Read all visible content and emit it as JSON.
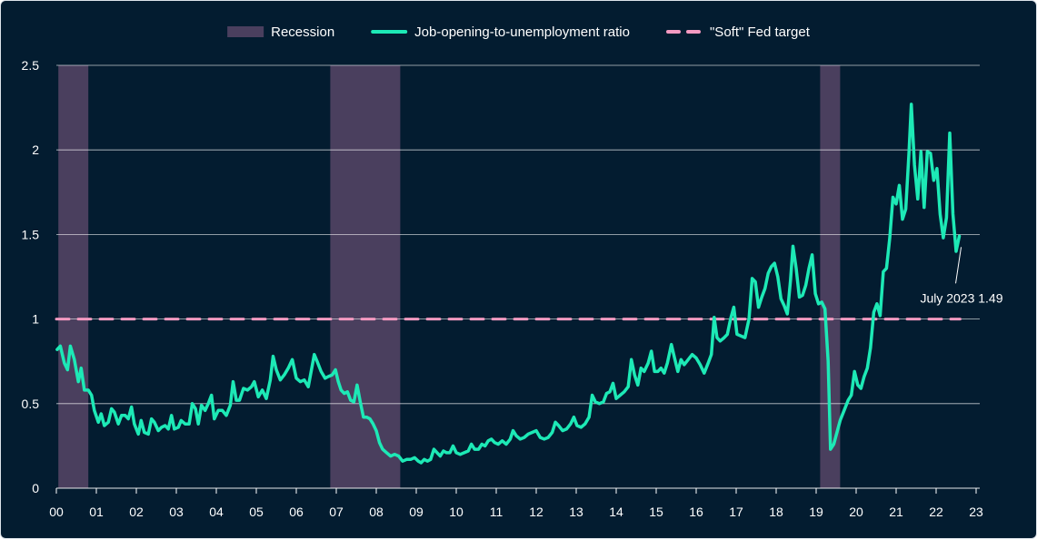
{
  "chart_data": {
    "type": "line",
    "title": "",
    "xlabel": "",
    "ylabel": "",
    "x_tick_labels": [
      "00",
      "01",
      "02",
      "03",
      "04",
      "05",
      "06",
      "07",
      "08",
      "09",
      "10",
      "11",
      "12",
      "13",
      "14",
      "15",
      "16",
      "17",
      "18",
      "19",
      "20",
      "21",
      "22",
      "23"
    ],
    "xlim": [
      2000,
      2023
    ],
    "ylim": [
      0,
      2.5
    ],
    "y_ticks": [
      0,
      0.5,
      1,
      1.5,
      2,
      2.5
    ],
    "y_tick_labels": [
      "0",
      "0.5",
      "1",
      "1.5",
      "2",
      "2.5"
    ],
    "grid": "horizontal",
    "legend_position": "top-center",
    "colors": {
      "background": "#031c30",
      "recession": "#4a3f5e",
      "ratio": "#1de9b6",
      "target": "#f49ac1",
      "grid": "#ffffff"
    },
    "recessions": [
      {
        "start": 2000.05,
        "end": 2000.8
      },
      {
        "start": 2006.85,
        "end": 2008.6
      },
      {
        "start": 2019.1,
        "end": 2019.6
      }
    ],
    "legend": [
      {
        "key": "recession",
        "label": "Recession"
      },
      {
        "key": "ratio",
        "label": "Job-opening-to-unemployment ratio"
      },
      {
        "key": "target",
        "label": "\"Soft\" Fed target"
      }
    ],
    "series": [
      {
        "key": "ratio",
        "name": "Job-opening-to-unemployment ratio",
        "points": [
          [
            2000.02,
            0.82
          ],
          [
            2000.1,
            0.84
          ],
          [
            2000.2,
            0.74
          ],
          [
            2000.28,
            0.7
          ],
          [
            2000.35,
            0.84
          ],
          [
            2000.45,
            0.76
          ],
          [
            2000.55,
            0.63
          ],
          [
            2000.62,
            0.71
          ],
          [
            2000.7,
            0.58
          ],
          [
            2000.8,
            0.58
          ],
          [
            2000.88,
            0.55
          ],
          [
            2000.95,
            0.46
          ],
          [
            2001.05,
            0.39
          ],
          [
            2001.12,
            0.44
          ],
          [
            2001.2,
            0.37
          ],
          [
            2001.3,
            0.39
          ],
          [
            2001.38,
            0.47
          ],
          [
            2001.45,
            0.45
          ],
          [
            2001.55,
            0.38
          ],
          [
            2001.63,
            0.43
          ],
          [
            2001.72,
            0.43
          ],
          [
            2001.8,
            0.41
          ],
          [
            2001.88,
            0.48
          ],
          [
            2001.95,
            0.38
          ],
          [
            2002.05,
            0.32
          ],
          [
            2002.12,
            0.4
          ],
          [
            2002.2,
            0.33
          ],
          [
            2002.3,
            0.32
          ],
          [
            2002.38,
            0.41
          ],
          [
            2002.45,
            0.39
          ],
          [
            2002.55,
            0.34
          ],
          [
            2002.63,
            0.36
          ],
          [
            2002.72,
            0.37
          ],
          [
            2002.8,
            0.35
          ],
          [
            2002.88,
            0.43
          ],
          [
            2002.95,
            0.35
          ],
          [
            2003.05,
            0.36
          ],
          [
            2003.12,
            0.4
          ],
          [
            2003.22,
            0.38
          ],
          [
            2003.32,
            0.38
          ],
          [
            2003.4,
            0.5
          ],
          [
            2003.48,
            0.47
          ],
          [
            2003.55,
            0.38
          ],
          [
            2003.63,
            0.49
          ],
          [
            2003.72,
            0.46
          ],
          [
            2003.8,
            0.5
          ],
          [
            2003.88,
            0.55
          ],
          [
            2003.95,
            0.41
          ],
          [
            2004.05,
            0.46
          ],
          [
            2004.15,
            0.46
          ],
          [
            2004.25,
            0.43
          ],
          [
            2004.35,
            0.49
          ],
          [
            2004.42,
            0.63
          ],
          [
            2004.5,
            0.52
          ],
          [
            2004.58,
            0.52
          ],
          [
            2004.68,
            0.59
          ],
          [
            2004.78,
            0.58
          ],
          [
            2004.88,
            0.6
          ],
          [
            2004.95,
            0.63
          ],
          [
            2005.05,
            0.54
          ],
          [
            2005.15,
            0.58
          ],
          [
            2005.25,
            0.53
          ],
          [
            2005.35,
            0.64
          ],
          [
            2005.42,
            0.78
          ],
          [
            2005.5,
            0.7
          ],
          [
            2005.6,
            0.64
          ],
          [
            2005.7,
            0.67
          ],
          [
            2005.8,
            0.71
          ],
          [
            2005.9,
            0.76
          ],
          [
            2006.0,
            0.65
          ],
          [
            2006.1,
            0.63
          ],
          [
            2006.2,
            0.64
          ],
          [
            2006.3,
            0.6
          ],
          [
            2006.38,
            0.7
          ],
          [
            2006.45,
            0.79
          ],
          [
            2006.52,
            0.75
          ],
          [
            2006.62,
            0.69
          ],
          [
            2006.72,
            0.65
          ],
          [
            2006.8,
            0.66
          ],
          [
            2006.9,
            0.67
          ],
          [
            2006.98,
            0.7
          ],
          [
            2007.05,
            0.63
          ],
          [
            2007.12,
            0.58
          ],
          [
            2007.2,
            0.56
          ],
          [
            2007.28,
            0.57
          ],
          [
            2007.36,
            0.52
          ],
          [
            2007.44,
            0.51
          ],
          [
            2007.52,
            0.61
          ],
          [
            2007.6,
            0.51
          ],
          [
            2007.68,
            0.42
          ],
          [
            2007.76,
            0.42
          ],
          [
            2007.84,
            0.41
          ],
          [
            2007.92,
            0.38
          ],
          [
            2008.0,
            0.34
          ],
          [
            2008.08,
            0.27
          ],
          [
            2008.16,
            0.23
          ],
          [
            2008.26,
            0.21
          ],
          [
            2008.36,
            0.19
          ],
          [
            2008.46,
            0.2
          ],
          [
            2008.56,
            0.19
          ],
          [
            2008.66,
            0.16
          ],
          [
            2008.76,
            0.17
          ],
          [
            2008.86,
            0.17
          ],
          [
            2008.96,
            0.18
          ],
          [
            2009.05,
            0.16
          ],
          [
            2009.12,
            0.15
          ],
          [
            2009.2,
            0.17
          ],
          [
            2009.28,
            0.16
          ],
          [
            2009.36,
            0.17
          ],
          [
            2009.44,
            0.23
          ],
          [
            2009.52,
            0.21
          ],
          [
            2009.6,
            0.19
          ],
          [
            2009.68,
            0.22
          ],
          [
            2009.76,
            0.21
          ],
          [
            2009.84,
            0.21
          ],
          [
            2009.92,
            0.25
          ],
          [
            2010.0,
            0.21
          ],
          [
            2010.1,
            0.2
          ],
          [
            2010.2,
            0.21
          ],
          [
            2010.3,
            0.22
          ],
          [
            2010.38,
            0.26
          ],
          [
            2010.46,
            0.23
          ],
          [
            2010.56,
            0.23
          ],
          [
            2010.64,
            0.26
          ],
          [
            2010.72,
            0.25
          ],
          [
            2010.8,
            0.28
          ],
          [
            2010.88,
            0.29
          ],
          [
            2010.96,
            0.27
          ],
          [
            2011.05,
            0.26
          ],
          [
            2011.15,
            0.28
          ],
          [
            2011.25,
            0.26
          ],
          [
            2011.35,
            0.29
          ],
          [
            2011.42,
            0.34
          ],
          [
            2011.5,
            0.31
          ],
          [
            2011.6,
            0.29
          ],
          [
            2011.7,
            0.3
          ],
          [
            2011.8,
            0.32
          ],
          [
            2011.9,
            0.33
          ],
          [
            2012.0,
            0.34
          ],
          [
            2012.1,
            0.3
          ],
          [
            2012.2,
            0.29
          ],
          [
            2012.3,
            0.3
          ],
          [
            2012.4,
            0.33
          ],
          [
            2012.48,
            0.39
          ],
          [
            2012.56,
            0.37
          ],
          [
            2012.66,
            0.34
          ],
          [
            2012.76,
            0.35
          ],
          [
            2012.86,
            0.38
          ],
          [
            2012.94,
            0.42
          ],
          [
            2013.02,
            0.37
          ],
          [
            2013.12,
            0.36
          ],
          [
            2013.22,
            0.38
          ],
          [
            2013.32,
            0.42
          ],
          [
            2013.4,
            0.55
          ],
          [
            2013.48,
            0.51
          ],
          [
            2013.58,
            0.5
          ],
          [
            2013.68,
            0.51
          ],
          [
            2013.76,
            0.56
          ],
          [
            2013.84,
            0.57
          ],
          [
            2013.92,
            0.62
          ],
          [
            2014.0,
            0.53
          ],
          [
            2014.1,
            0.55
          ],
          [
            2014.2,
            0.57
          ],
          [
            2014.3,
            0.6
          ],
          [
            2014.38,
            0.76
          ],
          [
            2014.46,
            0.67
          ],
          [
            2014.54,
            0.61
          ],
          [
            2014.62,
            0.71
          ],
          [
            2014.7,
            0.69
          ],
          [
            2014.8,
            0.74
          ],
          [
            2014.88,
            0.81
          ],
          [
            2014.96,
            0.69
          ],
          [
            2015.04,
            0.69
          ],
          [
            2015.12,
            0.71
          ],
          [
            2015.2,
            0.68
          ],
          [
            2015.28,
            0.74
          ],
          [
            2015.38,
            0.85
          ],
          [
            2015.46,
            0.77
          ],
          [
            2015.54,
            0.69
          ],
          [
            2015.62,
            0.76
          ],
          [
            2015.7,
            0.73
          ],
          [
            2015.8,
            0.76
          ],
          [
            2015.9,
            0.79
          ],
          [
            2016.0,
            0.77
          ],
          [
            2016.1,
            0.73
          ],
          [
            2016.2,
            0.68
          ],
          [
            2016.3,
            0.74
          ],
          [
            2016.38,
            0.79
          ],
          [
            2016.45,
            1.01
          ],
          [
            2016.52,
            0.89
          ],
          [
            2016.6,
            0.87
          ],
          [
            2016.7,
            0.89
          ],
          [
            2016.78,
            0.91
          ],
          [
            2016.86,
            1.0
          ],
          [
            2016.94,
            1.07
          ],
          [
            2017.02,
            0.91
          ],
          [
            2017.12,
            0.9
          ],
          [
            2017.22,
            0.89
          ],
          [
            2017.32,
            1.0
          ],
          [
            2017.4,
            1.24
          ],
          [
            2017.48,
            1.22
          ],
          [
            2017.56,
            1.07
          ],
          [
            2017.64,
            1.13
          ],
          [
            2017.72,
            1.18
          ],
          [
            2017.8,
            1.27
          ],
          [
            2017.88,
            1.31
          ],
          [
            2017.96,
            1.33
          ],
          [
            2018.04,
            1.25
          ],
          [
            2018.12,
            1.12
          ],
          [
            2018.2,
            1.08
          ],
          [
            2018.28,
            1.03
          ],
          [
            2018.36,
            1.23
          ],
          [
            2018.42,
            1.43
          ],
          [
            2018.5,
            1.3
          ],
          [
            2018.58,
            1.13
          ],
          [
            2018.66,
            1.14
          ],
          [
            2018.74,
            1.2
          ],
          [
            2018.82,
            1.3
          ],
          [
            2018.9,
            1.38
          ],
          [
            2018.98,
            1.15
          ],
          [
            2019.06,
            1.09
          ],
          [
            2019.14,
            1.1
          ],
          [
            2019.22,
            1.06
          ],
          [
            2019.3,
            0.75
          ],
          [
            2019.36,
            0.23
          ],
          [
            2019.44,
            0.26
          ],
          [
            2019.52,
            0.33
          ],
          [
            2019.6,
            0.4
          ],
          [
            2019.7,
            0.46
          ],
          [
            2019.8,
            0.52
          ],
          [
            2019.88,
            0.55
          ],
          [
            2019.96,
            0.69
          ],
          [
            2020.04,
            0.61
          ],
          [
            2020.12,
            0.59
          ],
          [
            2020.2,
            0.66
          ],
          [
            2020.28,
            0.71
          ],
          [
            2020.36,
            0.83
          ],
          [
            2020.44,
            1.04
          ],
          [
            2020.52,
            1.09
          ],
          [
            2020.6,
            1.02
          ],
          [
            2020.68,
            1.28
          ],
          [
            2020.76,
            1.3
          ],
          [
            2020.84,
            1.48
          ],
          [
            2020.92,
            1.72
          ],
          [
            2021.0,
            1.68
          ],
          [
            2021.08,
            1.79
          ],
          [
            2021.16,
            1.59
          ],
          [
            2021.24,
            1.65
          ],
          [
            2021.32,
            1.98
          ],
          [
            2021.38,
            2.27
          ],
          [
            2021.46,
            1.91
          ],
          [
            2021.54,
            1.71
          ],
          [
            2021.62,
            1.99
          ],
          [
            2021.7,
            1.66
          ],
          [
            2021.78,
            1.99
          ],
          [
            2021.86,
            1.98
          ],
          [
            2021.94,
            1.82
          ],
          [
            2022.02,
            1.89
          ],
          [
            2022.1,
            1.62
          ],
          [
            2022.18,
            1.48
          ],
          [
            2022.26,
            1.6
          ],
          [
            2022.34,
            2.1
          ],
          [
            2022.42,
            1.62
          ],
          [
            2022.5,
            1.4
          ],
          [
            2022.58,
            1.49
          ]
        ]
      },
      {
        "key": "target",
        "name": "\"Soft\" Fed target",
        "points": [
          [
            2000.0,
            1.0
          ],
          [
            2022.6,
            1.0
          ]
        ]
      }
    ],
    "annotation": {
      "text": "July 2023 1.49",
      "x": 2022.58,
      "y": 1.49
    }
  }
}
